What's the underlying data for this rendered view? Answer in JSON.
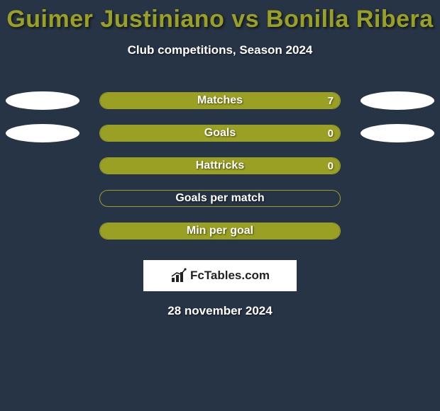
{
  "background_color": "#263445",
  "title": {
    "text": "Guimer Justiniano vs Bonilla Ribera",
    "color": "#9aa023",
    "fontsize": 34
  },
  "subtitle": {
    "text": "Club competitions, Season 2024",
    "color": "#ffffff",
    "fontsize": 17
  },
  "ellipse_left_color": "#ffffff",
  "ellipse_right_color": "#ffffff",
  "bar_border_color": "#9aa023",
  "bar_fill_color": "#9aa023",
  "rows": [
    {
      "label": "Matches",
      "value": "7",
      "fill_pct": 100,
      "show_value": true,
      "show_left_ellipse": true,
      "show_right_ellipse": true
    },
    {
      "label": "Goals",
      "value": "0",
      "fill_pct": 100,
      "show_value": true,
      "show_left_ellipse": true,
      "show_right_ellipse": true
    },
    {
      "label": "Hattricks",
      "value": "0",
      "fill_pct": 100,
      "show_value": true,
      "show_left_ellipse": false,
      "show_right_ellipse": false
    },
    {
      "label": "Goals per match",
      "value": "",
      "fill_pct": 0,
      "show_value": false,
      "show_left_ellipse": false,
      "show_right_ellipse": false
    },
    {
      "label": "Min per goal",
      "value": "",
      "fill_pct": 100,
      "show_value": false,
      "show_left_ellipse": false,
      "show_right_ellipse": false
    }
  ],
  "logo": {
    "prefix": "Fc",
    "suffix": "Tables.com"
  },
  "date": "28 november 2024"
}
